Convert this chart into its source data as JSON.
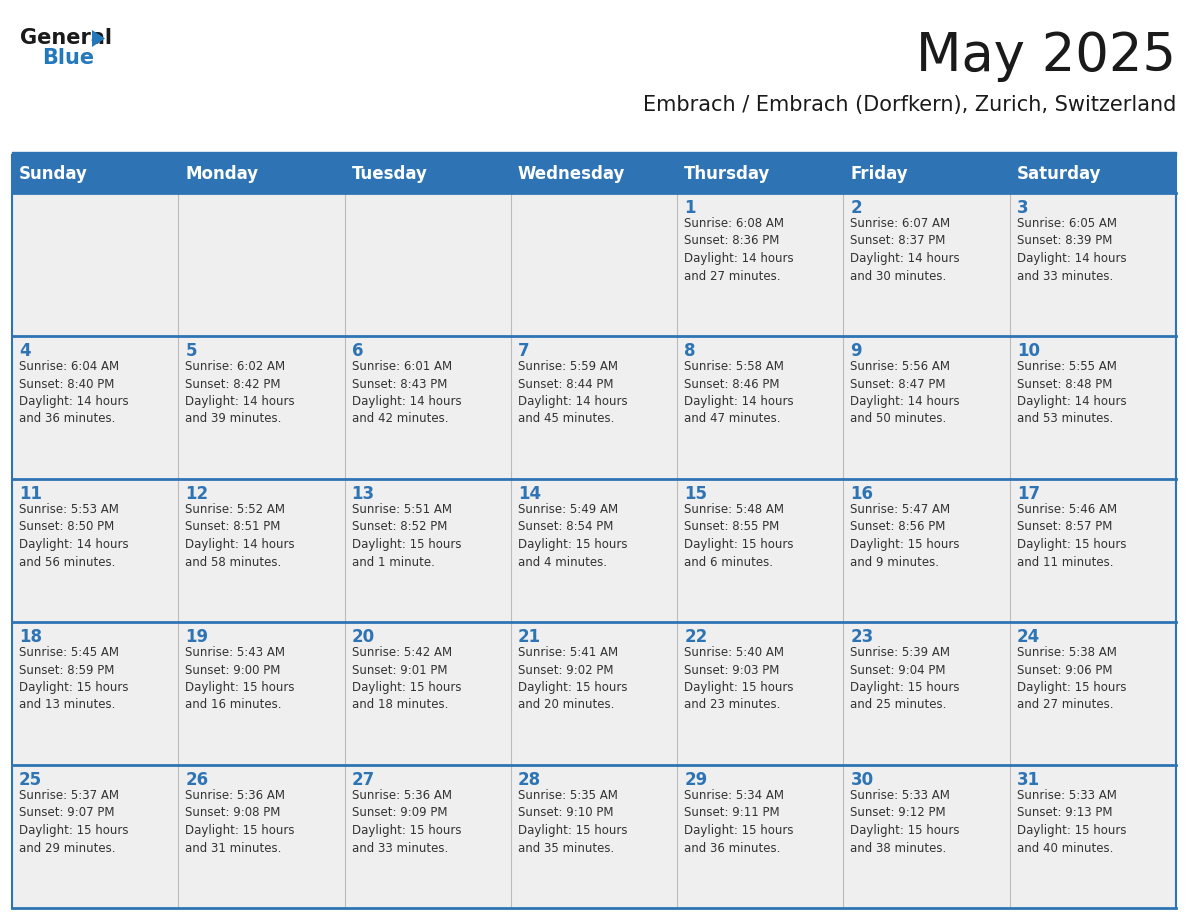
{
  "title": "May 2025",
  "subtitle": "Embrach / Embrach (Dorfkern), Zurich, Switzerland",
  "header_bg": "#2E74B5",
  "header_text": "#FFFFFF",
  "row_bg": "#EFEFEF",
  "row_bg_white": "#FFFFFF",
  "cell_border_color": "#BBBBBB",
  "row_separator_color": "#2E74B5",
  "day_headers": [
    "Sunday",
    "Monday",
    "Tuesday",
    "Wednesday",
    "Thursday",
    "Friday",
    "Saturday"
  ],
  "weeks": [
    [
      {
        "day": "",
        "info": ""
      },
      {
        "day": "",
        "info": ""
      },
      {
        "day": "",
        "info": ""
      },
      {
        "day": "",
        "info": ""
      },
      {
        "day": "1",
        "info": "Sunrise: 6:08 AM\nSunset: 8:36 PM\nDaylight: 14 hours\nand 27 minutes."
      },
      {
        "day": "2",
        "info": "Sunrise: 6:07 AM\nSunset: 8:37 PM\nDaylight: 14 hours\nand 30 minutes."
      },
      {
        "day": "3",
        "info": "Sunrise: 6:05 AM\nSunset: 8:39 PM\nDaylight: 14 hours\nand 33 minutes."
      }
    ],
    [
      {
        "day": "4",
        "info": "Sunrise: 6:04 AM\nSunset: 8:40 PM\nDaylight: 14 hours\nand 36 minutes."
      },
      {
        "day": "5",
        "info": "Sunrise: 6:02 AM\nSunset: 8:42 PM\nDaylight: 14 hours\nand 39 minutes."
      },
      {
        "day": "6",
        "info": "Sunrise: 6:01 AM\nSunset: 8:43 PM\nDaylight: 14 hours\nand 42 minutes."
      },
      {
        "day": "7",
        "info": "Sunrise: 5:59 AM\nSunset: 8:44 PM\nDaylight: 14 hours\nand 45 minutes."
      },
      {
        "day": "8",
        "info": "Sunrise: 5:58 AM\nSunset: 8:46 PM\nDaylight: 14 hours\nand 47 minutes."
      },
      {
        "day": "9",
        "info": "Sunrise: 5:56 AM\nSunset: 8:47 PM\nDaylight: 14 hours\nand 50 minutes."
      },
      {
        "day": "10",
        "info": "Sunrise: 5:55 AM\nSunset: 8:48 PM\nDaylight: 14 hours\nand 53 minutes."
      }
    ],
    [
      {
        "day": "11",
        "info": "Sunrise: 5:53 AM\nSunset: 8:50 PM\nDaylight: 14 hours\nand 56 minutes."
      },
      {
        "day": "12",
        "info": "Sunrise: 5:52 AM\nSunset: 8:51 PM\nDaylight: 14 hours\nand 58 minutes."
      },
      {
        "day": "13",
        "info": "Sunrise: 5:51 AM\nSunset: 8:52 PM\nDaylight: 15 hours\nand 1 minute."
      },
      {
        "day": "14",
        "info": "Sunrise: 5:49 AM\nSunset: 8:54 PM\nDaylight: 15 hours\nand 4 minutes."
      },
      {
        "day": "15",
        "info": "Sunrise: 5:48 AM\nSunset: 8:55 PM\nDaylight: 15 hours\nand 6 minutes."
      },
      {
        "day": "16",
        "info": "Sunrise: 5:47 AM\nSunset: 8:56 PM\nDaylight: 15 hours\nand 9 minutes."
      },
      {
        "day": "17",
        "info": "Sunrise: 5:46 AM\nSunset: 8:57 PM\nDaylight: 15 hours\nand 11 minutes."
      }
    ],
    [
      {
        "day": "18",
        "info": "Sunrise: 5:45 AM\nSunset: 8:59 PM\nDaylight: 15 hours\nand 13 minutes."
      },
      {
        "day": "19",
        "info": "Sunrise: 5:43 AM\nSunset: 9:00 PM\nDaylight: 15 hours\nand 16 minutes."
      },
      {
        "day": "20",
        "info": "Sunrise: 5:42 AM\nSunset: 9:01 PM\nDaylight: 15 hours\nand 18 minutes."
      },
      {
        "day": "21",
        "info": "Sunrise: 5:41 AM\nSunset: 9:02 PM\nDaylight: 15 hours\nand 20 minutes."
      },
      {
        "day": "22",
        "info": "Sunrise: 5:40 AM\nSunset: 9:03 PM\nDaylight: 15 hours\nand 23 minutes."
      },
      {
        "day": "23",
        "info": "Sunrise: 5:39 AM\nSunset: 9:04 PM\nDaylight: 15 hours\nand 25 minutes."
      },
      {
        "day": "24",
        "info": "Sunrise: 5:38 AM\nSunset: 9:06 PM\nDaylight: 15 hours\nand 27 minutes."
      }
    ],
    [
      {
        "day": "25",
        "info": "Sunrise: 5:37 AM\nSunset: 9:07 PM\nDaylight: 15 hours\nand 29 minutes."
      },
      {
        "day": "26",
        "info": "Sunrise: 5:36 AM\nSunset: 9:08 PM\nDaylight: 15 hours\nand 31 minutes."
      },
      {
        "day": "27",
        "info": "Sunrise: 5:36 AM\nSunset: 9:09 PM\nDaylight: 15 hours\nand 33 minutes."
      },
      {
        "day": "28",
        "info": "Sunrise: 5:35 AM\nSunset: 9:10 PM\nDaylight: 15 hours\nand 35 minutes."
      },
      {
        "day": "29",
        "info": "Sunrise: 5:34 AM\nSunset: 9:11 PM\nDaylight: 15 hours\nand 36 minutes."
      },
      {
        "day": "30",
        "info": "Sunrise: 5:33 AM\nSunset: 9:12 PM\nDaylight: 15 hours\nand 38 minutes."
      },
      {
        "day": "31",
        "info": "Sunrise: 5:33 AM\nSunset: 9:13 PM\nDaylight: 15 hours\nand 40 minutes."
      }
    ]
  ],
  "logo_text_general": "General",
  "logo_text_blue": "Blue",
  "logo_color_general": "#1a1a1a",
  "logo_color_blue": "#2479BD",
  "logo_triangle_color": "#2479BD",
  "title_color": "#1a1a1a",
  "subtitle_color": "#1a1a1a",
  "day_number_color": "#2E74B5",
  "cell_text_color": "#333333",
  "title_fontsize": 38,
  "subtitle_fontsize": 15,
  "header_fontsize": 12,
  "day_number_fontsize": 12,
  "cell_text_fontsize": 8.5
}
